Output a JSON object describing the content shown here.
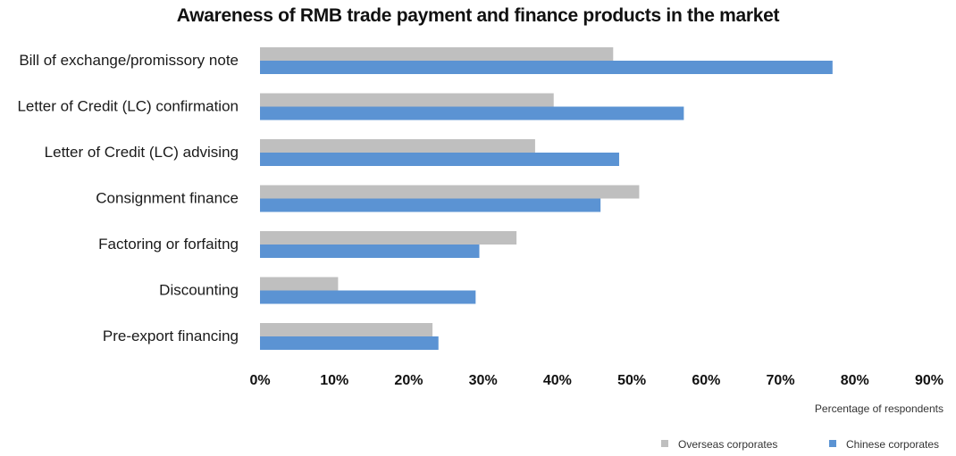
{
  "chart_data": {
    "type": "bar",
    "orientation": "horizontal",
    "title": "Awareness of RMB trade payment and finance products in the market",
    "xlabel": "Percentage of respondents",
    "ylabel": "",
    "categories": [
      "Bill of exchange/promissory note",
      "Letter of Credit (LC) confirmation",
      "Letter of Credit (LC) advising",
      "Consignment finance",
      "Factoring or forfaitng",
      "Discounting",
      "Pre-export financing"
    ],
    "series": [
      {
        "name": "Overseas corporates",
        "color": "#bfbfbf",
        "values": [
          47.5,
          39.5,
          37,
          51,
          34.5,
          10.5,
          23.2
        ]
      },
      {
        "name": "Chinese corporates",
        "color": "#5b93d3",
        "values": [
          77,
          57,
          48.3,
          45.8,
          29.5,
          29,
          24
        ]
      }
    ],
    "xlim": [
      0,
      90
    ],
    "ticks": [
      "0%",
      "10%",
      "20%",
      "30%",
      "40%",
      "50%",
      "60%",
      "70%",
      "80%",
      "90%"
    ],
    "grid": false,
    "legend_position": "bottom-right"
  }
}
